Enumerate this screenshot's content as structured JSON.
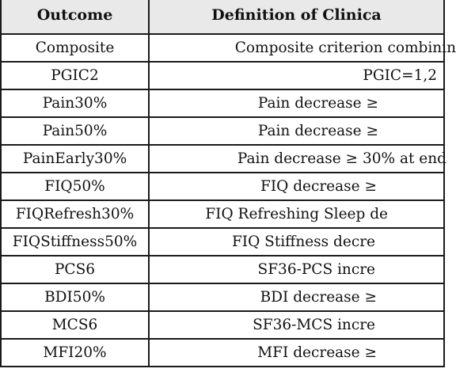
{
  "table": {
    "headers": [
      "Outcome",
      "Definition of Clinica"
    ],
    "rows": [
      {
        "outcome": "Composite",
        "definition": "Composite criterion combinin"
      },
      {
        "outcome": "PGIC2",
        "definition": "PGIC=1,2"
      },
      {
        "outcome": "Pain30%",
        "definition": "Pain decrease ≥"
      },
      {
        "outcome": "Pain50%",
        "definition": "Pain decrease ≥"
      },
      {
        "outcome": "PainEarly30%",
        "definition": "Pain decrease ≥ 30% at end"
      },
      {
        "outcome": "FIQ50%",
        "definition": "FIQ decrease ≥"
      },
      {
        "outcome": "FIQRefresh30%",
        "definition": "FIQ Refreshing Sleep de"
      },
      {
        "outcome": "FIQStiffness50%",
        "definition": "FIQ Stiffness decre"
      },
      {
        "outcome": "PCS6",
        "definition": "SF36-PCS incre"
      },
      {
        "outcome": "BDI50%",
        "definition": "BDI decrease ≥"
      },
      {
        "outcome": "MCS6",
        "definition": "SF36-MCS incre"
      },
      {
        "outcome": "MFI20%",
        "definition": "MFI decrease ≥"
      }
    ]
  }
}
